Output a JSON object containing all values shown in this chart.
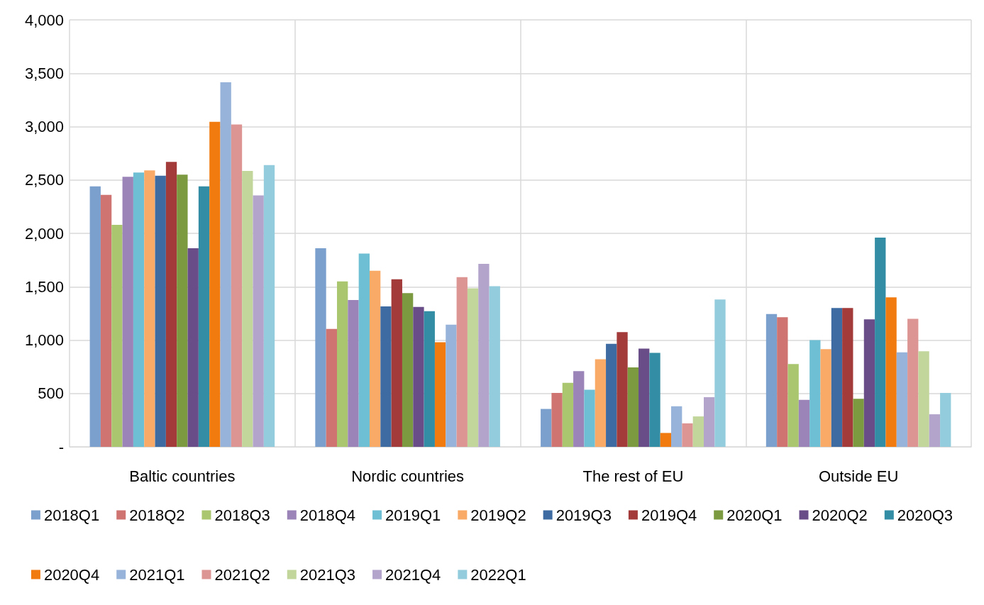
{
  "chart_data": {
    "type": "bar",
    "categories": [
      "Baltic countries",
      "Nordic countries",
      "The rest of EU",
      "Outside EU"
    ],
    "series": [
      {
        "name": "2018Q1",
        "color": "#7ba0cd",
        "values": [
          2440,
          1860,
          355,
          1245
        ]
      },
      {
        "name": "2018Q2",
        "color": "#cf7470",
        "values": [
          2360,
          1105,
          505,
          1215
        ]
      },
      {
        "name": "2018Q3",
        "color": "#aac76f",
        "values": [
          2080,
          1550,
          600,
          775
        ]
      },
      {
        "name": "2018Q4",
        "color": "#9b84b8",
        "values": [
          2530,
          1375,
          710,
          440
        ]
      },
      {
        "name": "2019Q1",
        "color": "#6ebfd4",
        "values": [
          2570,
          1810,
          535,
          1000
        ]
      },
      {
        "name": "2019Q2",
        "color": "#f9aa66",
        "values": [
          2590,
          1650,
          820,
          915
        ]
      },
      {
        "name": "2019Q3",
        "color": "#3e6ca2",
        "values": [
          2540,
          1315,
          965,
          1300
        ]
      },
      {
        "name": "2019Q4",
        "color": "#a23b3a",
        "values": [
          2670,
          1570,
          1075,
          1300
        ]
      },
      {
        "name": "2020Q1",
        "color": "#7c9a3f",
        "values": [
          2550,
          1440,
          745,
          450
        ]
      },
      {
        "name": "2020Q2",
        "color": "#684d88",
        "values": [
          1860,
          1310,
          920,
          1195
        ]
      },
      {
        "name": "2020Q3",
        "color": "#338da4",
        "values": [
          2440,
          1270,
          880,
          1960
        ]
      },
      {
        "name": "2020Q4",
        "color": "#f17b0f",
        "values": [
          3045,
          980,
          130,
          1400
        ]
      },
      {
        "name": "2021Q1",
        "color": "#97b3d9",
        "values": [
          3415,
          1145,
          380,
          885
        ]
      },
      {
        "name": "2021Q2",
        "color": "#dd9593",
        "values": [
          3020,
          1590,
          220,
          1200
        ]
      },
      {
        "name": "2021Q3",
        "color": "#c2d69c",
        "values": [
          2585,
          1485,
          285,
          895
        ]
      },
      {
        "name": "2021Q4",
        "color": "#b3a4cc",
        "values": [
          2355,
          1715,
          465,
          305
        ]
      },
      {
        "name": "2022Q1",
        "color": "#93cddd",
        "values": [
          2640,
          1505,
          1380,
          505
        ]
      }
    ],
    "ylim": [
      0,
      4000
    ],
    "yticks": [
      {
        "value": 0,
        "label": "-"
      },
      500,
      {
        "value": 1000,
        "label": "1,000"
      },
      {
        "value": 1500,
        "label": "1,500"
      },
      {
        "value": 2000,
        "label": "2,000"
      },
      {
        "value": 2500,
        "label": "2,500"
      },
      {
        "value": 3000,
        "label": "3,000"
      },
      {
        "value": 3500,
        "label": "3,500"
      },
      {
        "value": 4000,
        "label": "4,000"
      }
    ],
    "grid": true,
    "legend": "bottom"
  }
}
